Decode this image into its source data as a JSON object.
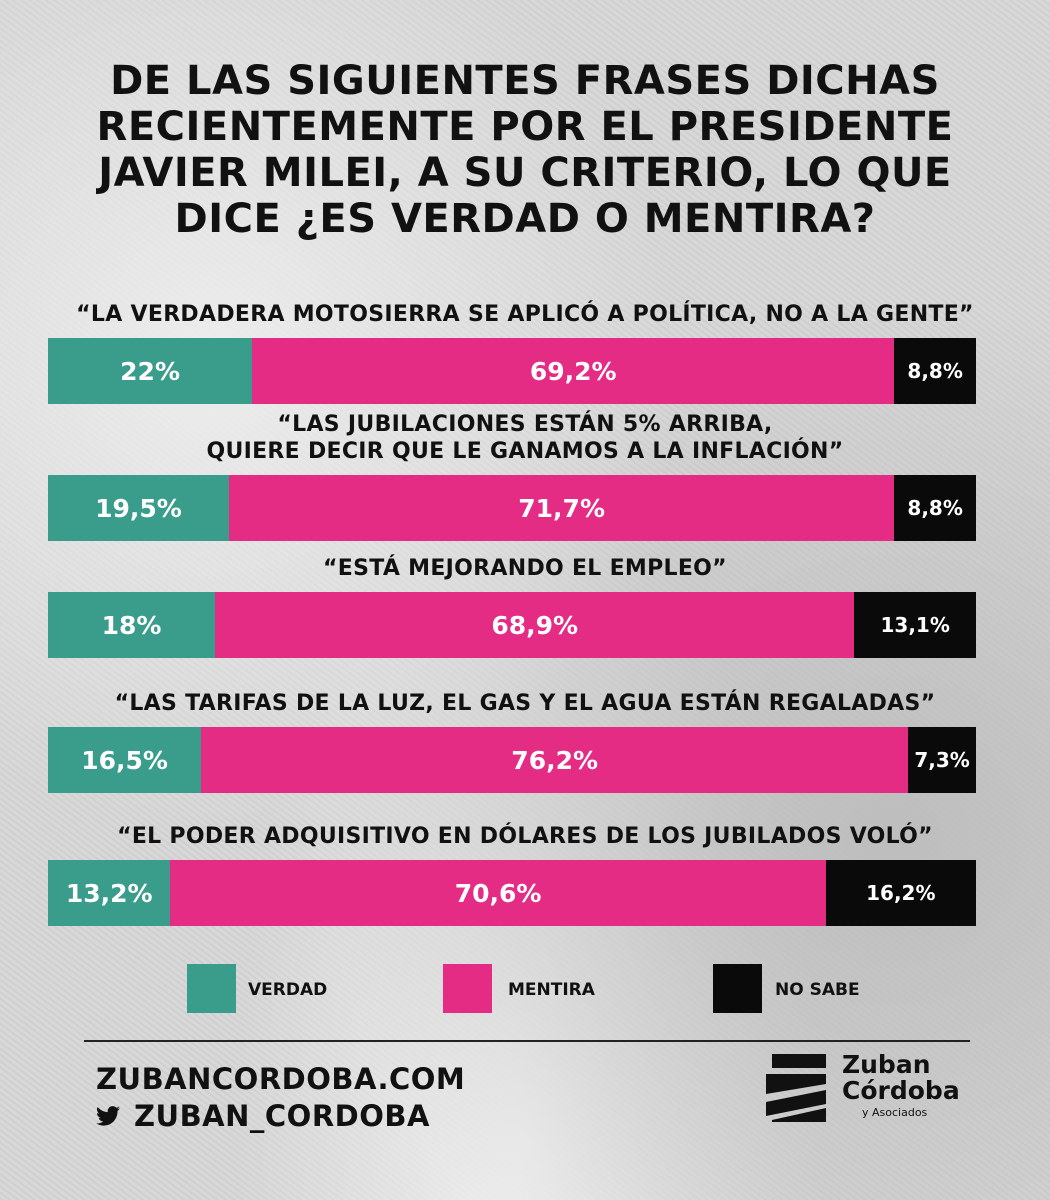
{
  "title_lines": [
    "DE LAS SIGUIENTES FRASES DICHAS",
    "RECIENTEMENTE POR EL PRESIDENTE",
    "JAVIER MILEI, A SU CRITERIO, LO QUE",
    "DICE ¿ES VERDAD O MENTIRA?"
  ],
  "colors": {
    "verdad": "#3a9d8c",
    "mentira": "#e52c85",
    "no_sabe": "#0a0a0a"
  },
  "chart_data": {
    "type": "bar",
    "orientation": "horizontal-stacked-100",
    "series_names": [
      "VERDAD",
      "MENTIRA",
      "NO SABE"
    ],
    "rows": [
      {
        "quote_lines": [
          "“LA VERDADERA MOTOSIERRA SE APLICÓ A POLÍTICA, NO A LA GENTE”"
        ],
        "values": [
          22,
          69.2,
          8.8
        ],
        "labels": [
          "22%",
          "69,2%",
          "8,8%"
        ]
      },
      {
        "quote_lines": [
          "“LAS JUBILACIONES ESTÁN 5% ARRIBA,",
          "QUIERE DECIR QUE LE GANAMOS A LA INFLACIÓN”"
        ],
        "values": [
          19.5,
          71.7,
          8.8
        ],
        "labels": [
          "19,5%",
          "71,7%",
          "8,8%"
        ]
      },
      {
        "quote_lines": [
          "“ESTÁ MEJORANDO EL EMPLEO”"
        ],
        "values": [
          18,
          68.9,
          13.1
        ],
        "labels": [
          "18%",
          "68,9%",
          "13,1%"
        ]
      },
      {
        "quote_lines": [
          "“LAS TARIFAS DE LA LUZ, EL GAS Y EL AGUA ESTÁN REGALADAS”"
        ],
        "values": [
          16.5,
          76.2,
          7.3
        ],
        "labels": [
          "16,5%",
          "76,2%",
          "7,3%"
        ]
      },
      {
        "quote_lines": [
          "“EL PODER ADQUISITIVO EN DÓLARES DE LOS JUBILADOS VOLÓ”"
        ],
        "values": [
          13.2,
          70.6,
          16.2
        ],
        "labels": [
          "13,2%",
          "70,6%",
          "16,2%"
        ]
      }
    ],
    "legend": [
      "VERDAD",
      "MENTIRA",
      "NO SABE"
    ],
    "legend_placement": "bottom"
  },
  "footer": {
    "website": "ZUBANCORDOBA.COM",
    "twitter_handle": "ZUBAN_CORDOBA",
    "twitter_icon": "twitter-bird-icon"
  },
  "logo": {
    "line1": "Zuban",
    "line2": "Córdoba",
    "line3": "y Asociados",
    "icon": "zuban-cordoba-logo-mark"
  }
}
